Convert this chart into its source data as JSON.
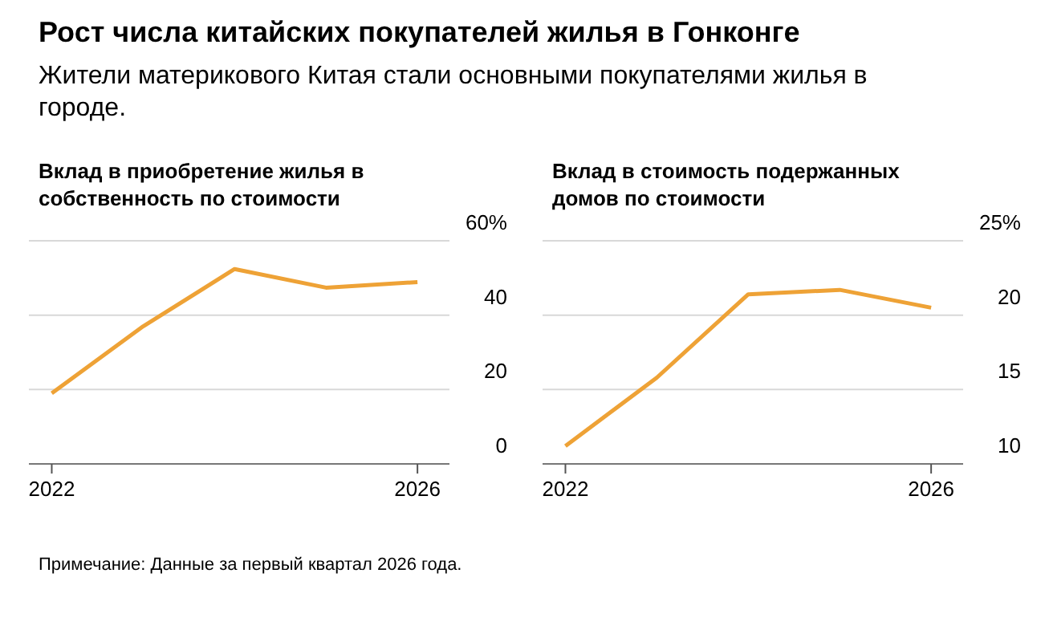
{
  "chart_data": [
    {
      "type": "line",
      "title": "Вклад в приобретение жилья в собственность по стоимости",
      "annotations": [
        "Рост числа китайских покупателей жилья в Гонконге",
        "Жители материкового Китая стали основными покупателями жилья в городе.",
        "Примечание: Данные за первый квартал 2026 года."
      ],
      "categories": [
        "2022",
        null,
        null,
        null,
        "2026"
      ],
      "series": [
        {
          "color": "#eea236",
          "values": [
            19,
            37,
            52.4,
            47.4,
            48.9
          ]
        }
      ],
      "ylim": [
        0,
        60
      ],
      "yticks": [
        0,
        20,
        40,
        {
          "value": 60,
          "label": "60%"
        }
      ],
      "grid": "y",
      "legend": false,
      "marker": "none",
      "line_style": "solid"
    },
    {
      "type": "line",
      "title": "Вклад в стоимость подержанных домов по стоимости",
      "categories": [
        "2022",
        null,
        null,
        null,
        "2026"
      ],
      "series": [
        {
          "color": "#eea236",
          "values": [
            11.2,
            15.8,
            21.4,
            21.7,
            20.5
          ]
        }
      ],
      "ylim": [
        10,
        25
      ],
      "yticks": [
        10,
        15,
        20,
        {
          "value": 25,
          "label": "25%"
        }
      ],
      "grid": "y",
      "legend": false,
      "marker": "none",
      "line_style": "solid"
    }
  ]
}
